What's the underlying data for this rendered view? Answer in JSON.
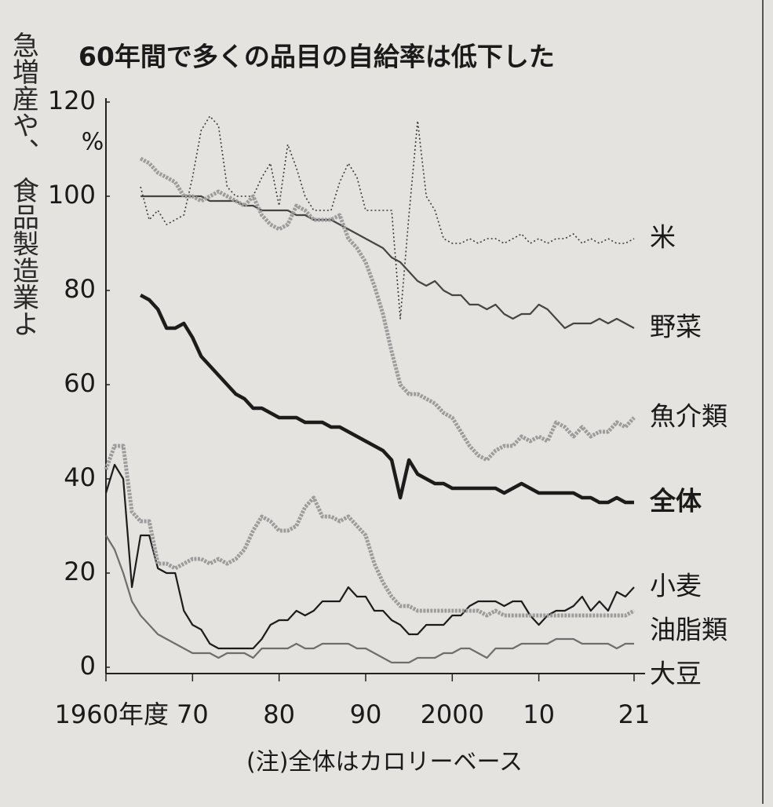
{
  "article_fragments": [
    "急増産や、",
    "食品製造業よ"
  ],
  "chart_data": {
    "type": "line",
    "title": "60年間で多くの品目の自給率は低下した",
    "y_unit": "%",
    "note": "(注)全体はカロリーベース",
    "x": [
      1960,
      1961,
      1962,
      1963,
      1964,
      1965,
      1966,
      1967,
      1968,
      1969,
      1970,
      1971,
      1972,
      1973,
      1974,
      1975,
      1976,
      1977,
      1978,
      1979,
      1980,
      1981,
      1982,
      1983,
      1984,
      1985,
      1986,
      1987,
      1988,
      1989,
      1990,
      1991,
      1992,
      1993,
      1994,
      1995,
      1996,
      1997,
      1998,
      1999,
      2000,
      2001,
      2002,
      2003,
      2004,
      2005,
      2006,
      2007,
      2008,
      2009,
      2010,
      2011,
      2012,
      2013,
      2014,
      2015,
      2016,
      2017,
      2018,
      2019,
      2020,
      2021
    ],
    "xlim": [
      1960,
      2022
    ],
    "xticks": [
      {
        "value": 1960,
        "label": "1960年度"
      },
      {
        "value": 1970,
        "label": "70"
      },
      {
        "value": 1980,
        "label": "80"
      },
      {
        "value": 1990,
        "label": "90"
      },
      2000,
      {
        "value": 2010,
        "label": "10"
      },
      {
        "value": 2021,
        "label": "21"
      }
    ],
    "ylim": [
      0,
      120
    ],
    "yticks": [
      0,
      20,
      40,
      60,
      80,
      100,
      120
    ],
    "grid": false,
    "series": [
      {
        "name": "米",
        "color": "#3a3a3a",
        "line_style": "dotted",
        "values": [
          null,
          null,
          null,
          null,
          102,
          95,
          97,
          94,
          95,
          96,
          104,
          114,
          117,
          115,
          102,
          100,
          100,
          100,
          104,
          107,
          98,
          111,
          106,
          100,
          97,
          97,
          97,
          103,
          107,
          104,
          97,
          97,
          97,
          97,
          74,
          96,
          116,
          100,
          97,
          91,
          90,
          90,
          91,
          90,
          91,
          91,
          90,
          91,
          92,
          90,
          91,
          90,
          91,
          91,
          92,
          90,
          91,
          90,
          91,
          90,
          90,
          91
        ]
      },
      {
        "name": "野菜",
        "color": "#454545",
        "line_style": "solid",
        "values": [
          null,
          null,
          null,
          null,
          100,
          100,
          100,
          100,
          100,
          100,
          100,
          100,
          99,
          99,
          99,
          99,
          98,
          98,
          97,
          97,
          97,
          97,
          96,
          96,
          95,
          95,
          95,
          94,
          93,
          92,
          91,
          90,
          89,
          87,
          86,
          84,
          82,
          81,
          82,
          80,
          79,
          79,
          77,
          77,
          76,
          77,
          75,
          74,
          75,
          75,
          77,
          76,
          74,
          72,
          73,
          73,
          73,
          74,
          73,
          74,
          73,
          72
        ]
      },
      {
        "name": "魚介類",
        "color": "#9c9c9c",
        "line_style": "thick-dotted",
        "values": [
          null,
          null,
          null,
          null,
          108,
          107,
          105,
          104,
          103,
          100,
          100,
          99,
          100,
          101,
          100,
          99,
          98,
          100,
          96,
          94,
          93,
          94,
          98,
          97,
          95,
          95,
          95,
          96,
          91,
          89,
          86,
          81,
          75,
          67,
          60,
          58,
          58,
          57,
          56,
          54,
          53,
          50,
          47,
          45,
          44,
          46,
          47,
          47,
          49,
          48,
          49,
          48,
          52,
          51,
          49,
          51,
          49,
          50,
          50,
          52,
          51,
          53
        ]
      },
      {
        "name": "全体",
        "color": "#1c1c1c",
        "line_style": "thick",
        "label_bold": true,
        "values": [
          null,
          null,
          null,
          null,
          79,
          78,
          76,
          72,
          72,
          73,
          70,
          66,
          64,
          62,
          60,
          58,
          57,
          55,
          55,
          54,
          53,
          53,
          53,
          52,
          52,
          52,
          51,
          51,
          50,
          49,
          48,
          47,
          46,
          44,
          36,
          44,
          41,
          40,
          39,
          39,
          38,
          38,
          38,
          38,
          38,
          38,
          37,
          38,
          39,
          38,
          37,
          37,
          37,
          37,
          37,
          36,
          36,
          35,
          35,
          36,
          35,
          35
        ]
      },
      {
        "name": "小麦",
        "color": "#1c1c1c",
        "line_style": "solid",
        "values": [
          37,
          43,
          40,
          17,
          28,
          28,
          21,
          20,
          20,
          12,
          9,
          8,
          5,
          4,
          4,
          4,
          4,
          4,
          6,
          9,
          10,
          10,
          12,
          11,
          12,
          14,
          14,
          14,
          17,
          15,
          15,
          12,
          12,
          10,
          9,
          7,
          7,
          9,
          9,
          9,
          11,
          11,
          13,
          14,
          14,
          14,
          13,
          14,
          14,
          11,
          9,
          11,
          12,
          12,
          13,
          15,
          12,
          14,
          12,
          16,
          15,
          17
        ]
      },
      {
        "name": "油脂類",
        "color": "#9c9c9c",
        "line_style": "thick-dotted",
        "values": [
          42,
          47,
          47,
          33,
          31,
          31,
          22,
          22,
          21,
          22,
          23,
          23,
          22,
          23,
          22,
          23,
          25,
          29,
          32,
          31,
          29,
          29,
          30,
          34,
          36,
          32,
          32,
          31,
          32,
          30,
          28,
          22,
          18,
          15,
          13,
          13,
          12,
          12,
          12,
          12,
          12,
          12,
          12,
          12,
          11,
          12,
          11,
          11,
          11,
          11,
          11,
          11,
          11,
          11,
          11,
          11,
          11,
          11,
          11,
          11,
          11,
          12
        ]
      },
      {
        "name": "大豆",
        "color": "#6e6e6e",
        "line_style": "solid",
        "values": [
          28,
          25,
          20,
          14,
          11,
          9,
          7,
          6,
          5,
          4,
          3,
          3,
          3,
          2,
          3,
          3,
          3,
          2,
          4,
          4,
          4,
          4,
          5,
          4,
          4,
          5,
          5,
          5,
          5,
          4,
          4,
          3,
          2,
          1,
          1,
          1,
          2,
          2,
          2,
          3,
          3,
          4,
          4,
          3,
          2,
          4,
          4,
          4,
          5,
          5,
          5,
          5,
          6,
          6,
          6,
          5,
          5,
          5,
          5,
          4,
          5,
          5
        ]
      }
    ]
  }
}
